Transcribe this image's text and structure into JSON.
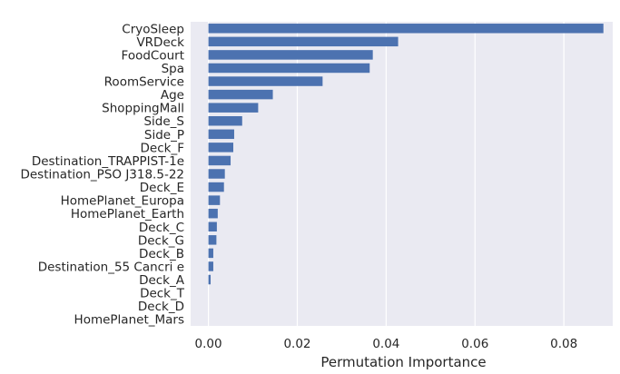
{
  "chart_data": {
    "type": "bar",
    "orientation": "horizontal",
    "title": "",
    "xlabel": "Permutation Importance",
    "ylabel": "",
    "xlim": [
      -0.004,
      0.091
    ],
    "x_ticks": [
      "0.00",
      "0.02",
      "0.04",
      "0.06",
      "0.08"
    ],
    "x_tick_values": [
      0.0,
      0.02,
      0.04,
      0.06,
      0.08
    ],
    "grid": true,
    "legend": "none",
    "bar_color": "#4c72b0",
    "background_color": "#eaeaf2",
    "categories": [
      "CryoSleep",
      "VRDeck",
      "FoodCourt",
      "Spa",
      "RoomService",
      "Age",
      "ShoppingMall",
      "Side_S",
      "Side_P",
      "Deck_F",
      "Destination_TRAPPIST-1e",
      "Destination_PSO J318.5-22",
      "Deck_E",
      "HomePlanet_Europa",
      "HomePlanet_Earth",
      "Deck_C",
      "Deck_G",
      "Deck_B",
      "Destination_55 Cancri e",
      "Deck_A",
      "Deck_T",
      "Deck_D",
      "HomePlanet_Mars"
    ],
    "values": [
      0.0889,
      0.0427,
      0.037,
      0.0363,
      0.0257,
      0.0145,
      0.0112,
      0.0076,
      0.0058,
      0.0056,
      0.005,
      0.0037,
      0.0035,
      0.0026,
      0.0021,
      0.0019,
      0.0018,
      0.0011,
      0.0011,
      0.0005,
      0.0,
      0.0,
      0.0
    ]
  }
}
